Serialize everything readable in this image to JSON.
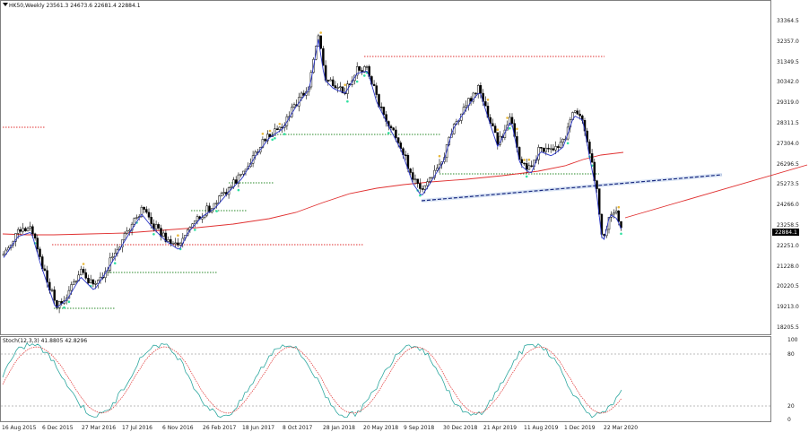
{
  "main_chart": {
    "symbol_header": "HK50,Weekly  23561.3 24673.6 22681.4 22884.1",
    "current_price_label": "22884.1",
    "price_axis_labels": [
      "33364.5",
      "32357.0",
      "31349.5",
      "30342.0",
      "29319.0",
      "28311.5",
      "27304.0",
      "26296.5",
      "25273.5",
      "24266.0",
      "23258.5",
      "22251.0",
      "21228.0",
      "20220.5",
      "19213.0",
      "18205.5"
    ],
    "date_axis_labels": [
      "16 Aug 2015",
      "6 Dec 2015",
      "27 Mar 2016",
      "17 Jul 2016",
      "6 Nov 2016",
      "26 Feb 2017",
      "18 Jun 2017",
      "8 Oct 2017",
      "28 Jan 2018",
      "20 May 2018",
      "9 Sep 2018",
      "30 Dec 2018",
      "21 Apr 2019",
      "11 Aug 2019",
      "1 Dec 2019",
      "22 Mar 2020"
    ]
  },
  "stochastic": {
    "header": "Stoch(12,3,3) 41.8805 42.8296",
    "axis_labels": [
      "100",
      "80",
      "20",
      "0"
    ]
  },
  "colors": {
    "bull_candle": "#ffffff",
    "bear_candle": "#000000",
    "moving_average": "#e03030",
    "price_ema": "#2a35c8",
    "trendline": "#1a2a80",
    "level_green": "#2a8a2a",
    "level_red": "#e03030",
    "signal_up": "#30e0a0",
    "signal_down": "#e8b83a"
  },
  "icons": {
    "collapse": "triangle-down-icon"
  }
}
